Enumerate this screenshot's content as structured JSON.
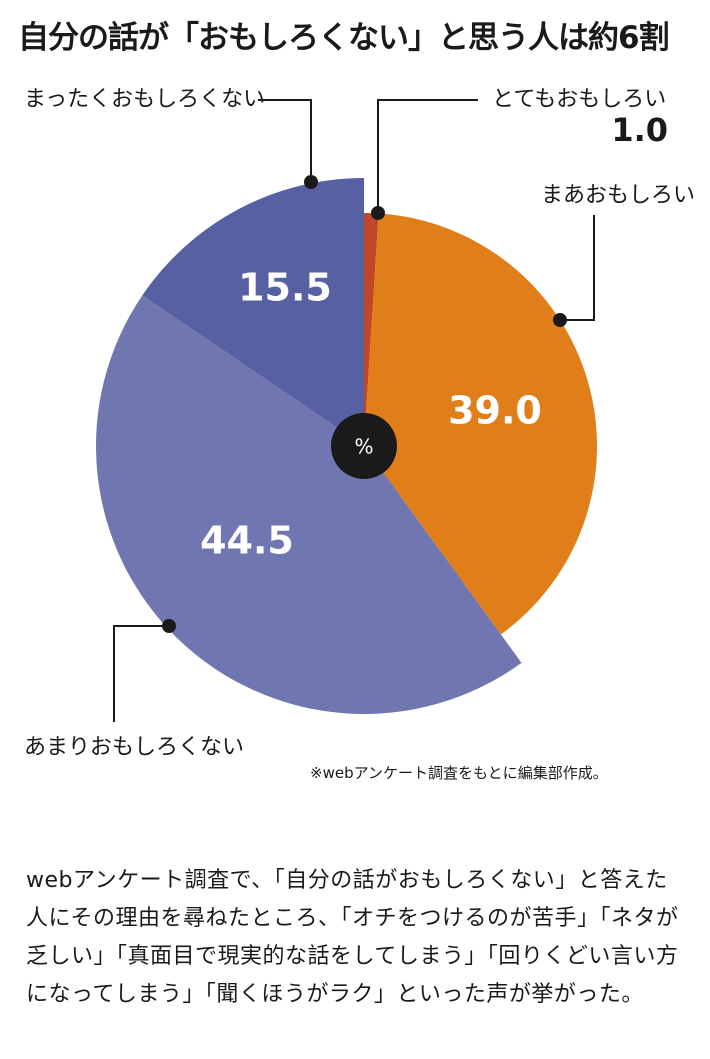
{
  "title": "自分の話が「おもしろくない」と思う人は約6割",
  "chart_data": {
    "type": "pie",
    "center_label": "%",
    "slices": [
      {
        "label": "とてもおもしろい",
        "value": 1.0,
        "color": "#c0482a"
      },
      {
        "label": "まあおもしろい",
        "value": 39.0,
        "color": "#e07f1a"
      },
      {
        "label": "あまりおもしろくない",
        "value": 44.5,
        "color": "#7077b0"
      },
      {
        "label": "まったくおもしろくない",
        "value": 15.5,
        "color": "#5660a3"
      }
    ]
  },
  "source_note": "※webアンケート調査をもとに編集部作成。",
  "body_text": "webアンケート調査で、「自分の話がおもしろくない」と答えた人にその理由を尋ねたところ、「オチをつけるのが苦手」「ネタが乏しい」「真面目で現実的な話をしてしまう」「回りくどい言い方になってしまう」「聞くほうがラク」といった声が挙がった。"
}
